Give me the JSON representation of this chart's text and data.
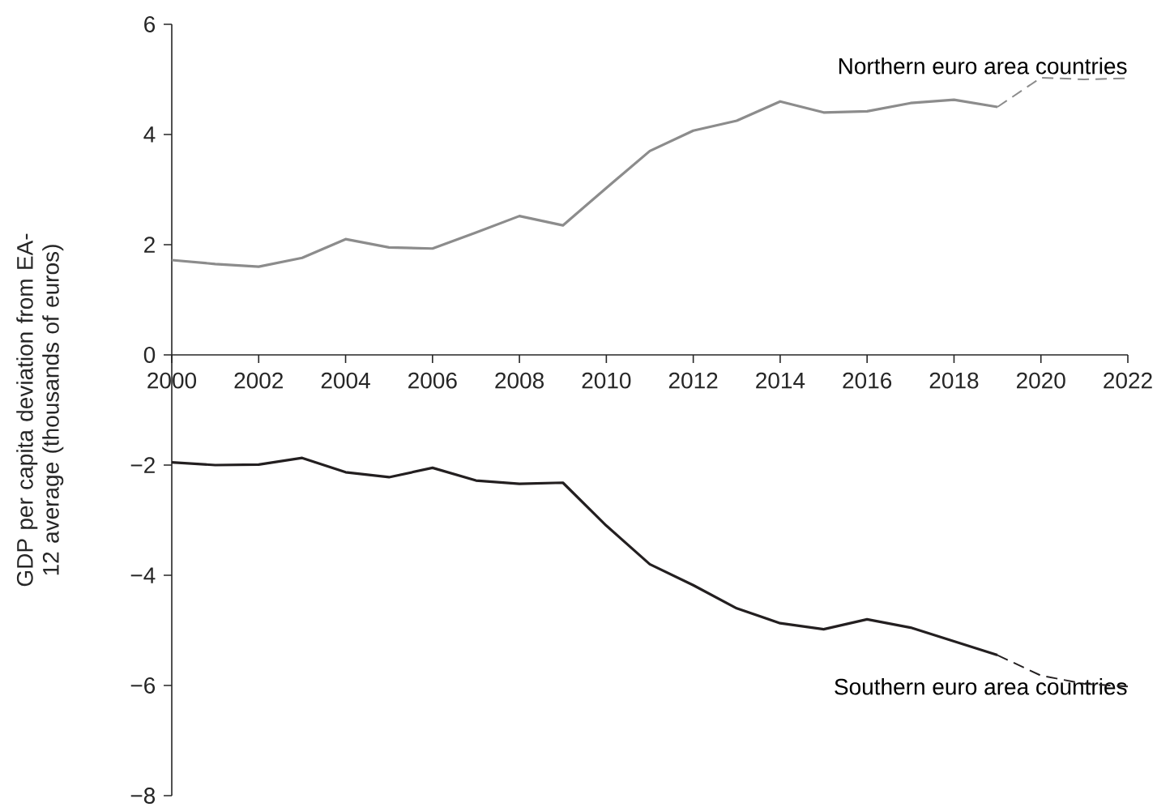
{
  "chart_data": {
    "type": "line",
    "ylabel": "GDP per capita deviation from EA-12 average (thousands of euros)",
    "xlim": [
      2000,
      2022
    ],
    "xticks": [
      2000,
      2002,
      2004,
      2006,
      2008,
      2010,
      2012,
      2014,
      2016,
      2018,
      2020,
      2022
    ],
    "ylim": [
      -8,
      6
    ],
    "yticks": [
      {
        "value": -8,
        "label": "−8"
      },
      {
        "value": -6,
        "label": "−6"
      },
      {
        "value": -4,
        "label": "−4"
      },
      {
        "value": -2,
        "label": "−2"
      },
      0,
      2,
      4,
      6
    ],
    "grid": false,
    "marker": "none",
    "series": [
      {
        "name": "Northern euro area countries",
        "color": "#8c8c8c",
        "line_style": "solid",
        "x": [
          2000,
          2001,
          2002,
          2003,
          2004,
          2005,
          2006,
          2007,
          2008,
          2009,
          2010,
          2011,
          2012,
          2013,
          2014,
          2015,
          2016,
          2017,
          2018,
          2019
        ],
        "values": [
          1.72,
          1.65,
          1.6,
          1.76,
          2.1,
          1.95,
          1.93,
          2.22,
          2.52,
          2.35,
          3.03,
          3.7,
          4.07,
          4.25,
          4.6,
          4.4,
          4.42,
          4.57,
          4.63,
          4.5
        ]
      },
      {
        "color": "#8c8c8c",
        "line_style": "dashed",
        "x": [
          2019,
          2020,
          2021,
          2022
        ],
        "values": [
          4.5,
          5.03,
          5.0,
          5.02
        ]
      },
      {
        "name": "Southern euro area countries",
        "color": "#231f20",
        "line_style": "solid",
        "x": [
          2000,
          2001,
          2002,
          2003,
          2004,
          2005,
          2006,
          2007,
          2008,
          2009,
          2010,
          2011,
          2012,
          2013,
          2014,
          2015,
          2016,
          2017,
          2018,
          2019
        ],
        "values": [
          -1.95,
          -2.0,
          -1.99,
          -1.87,
          -2.13,
          -2.22,
          -2.05,
          -2.28,
          -2.34,
          -2.32,
          -3.1,
          -3.8,
          -4.18,
          -4.6,
          -4.87,
          -4.98,
          -4.8,
          -4.95,
          -5.2,
          -5.45
        ]
      },
      {
        "color": "#231f20",
        "line_style": "dashed",
        "x": [
          2019,
          2020,
          2021,
          2022
        ],
        "values": [
          -5.45,
          -5.82,
          -5.97,
          -6.02
        ]
      }
    ]
  }
}
